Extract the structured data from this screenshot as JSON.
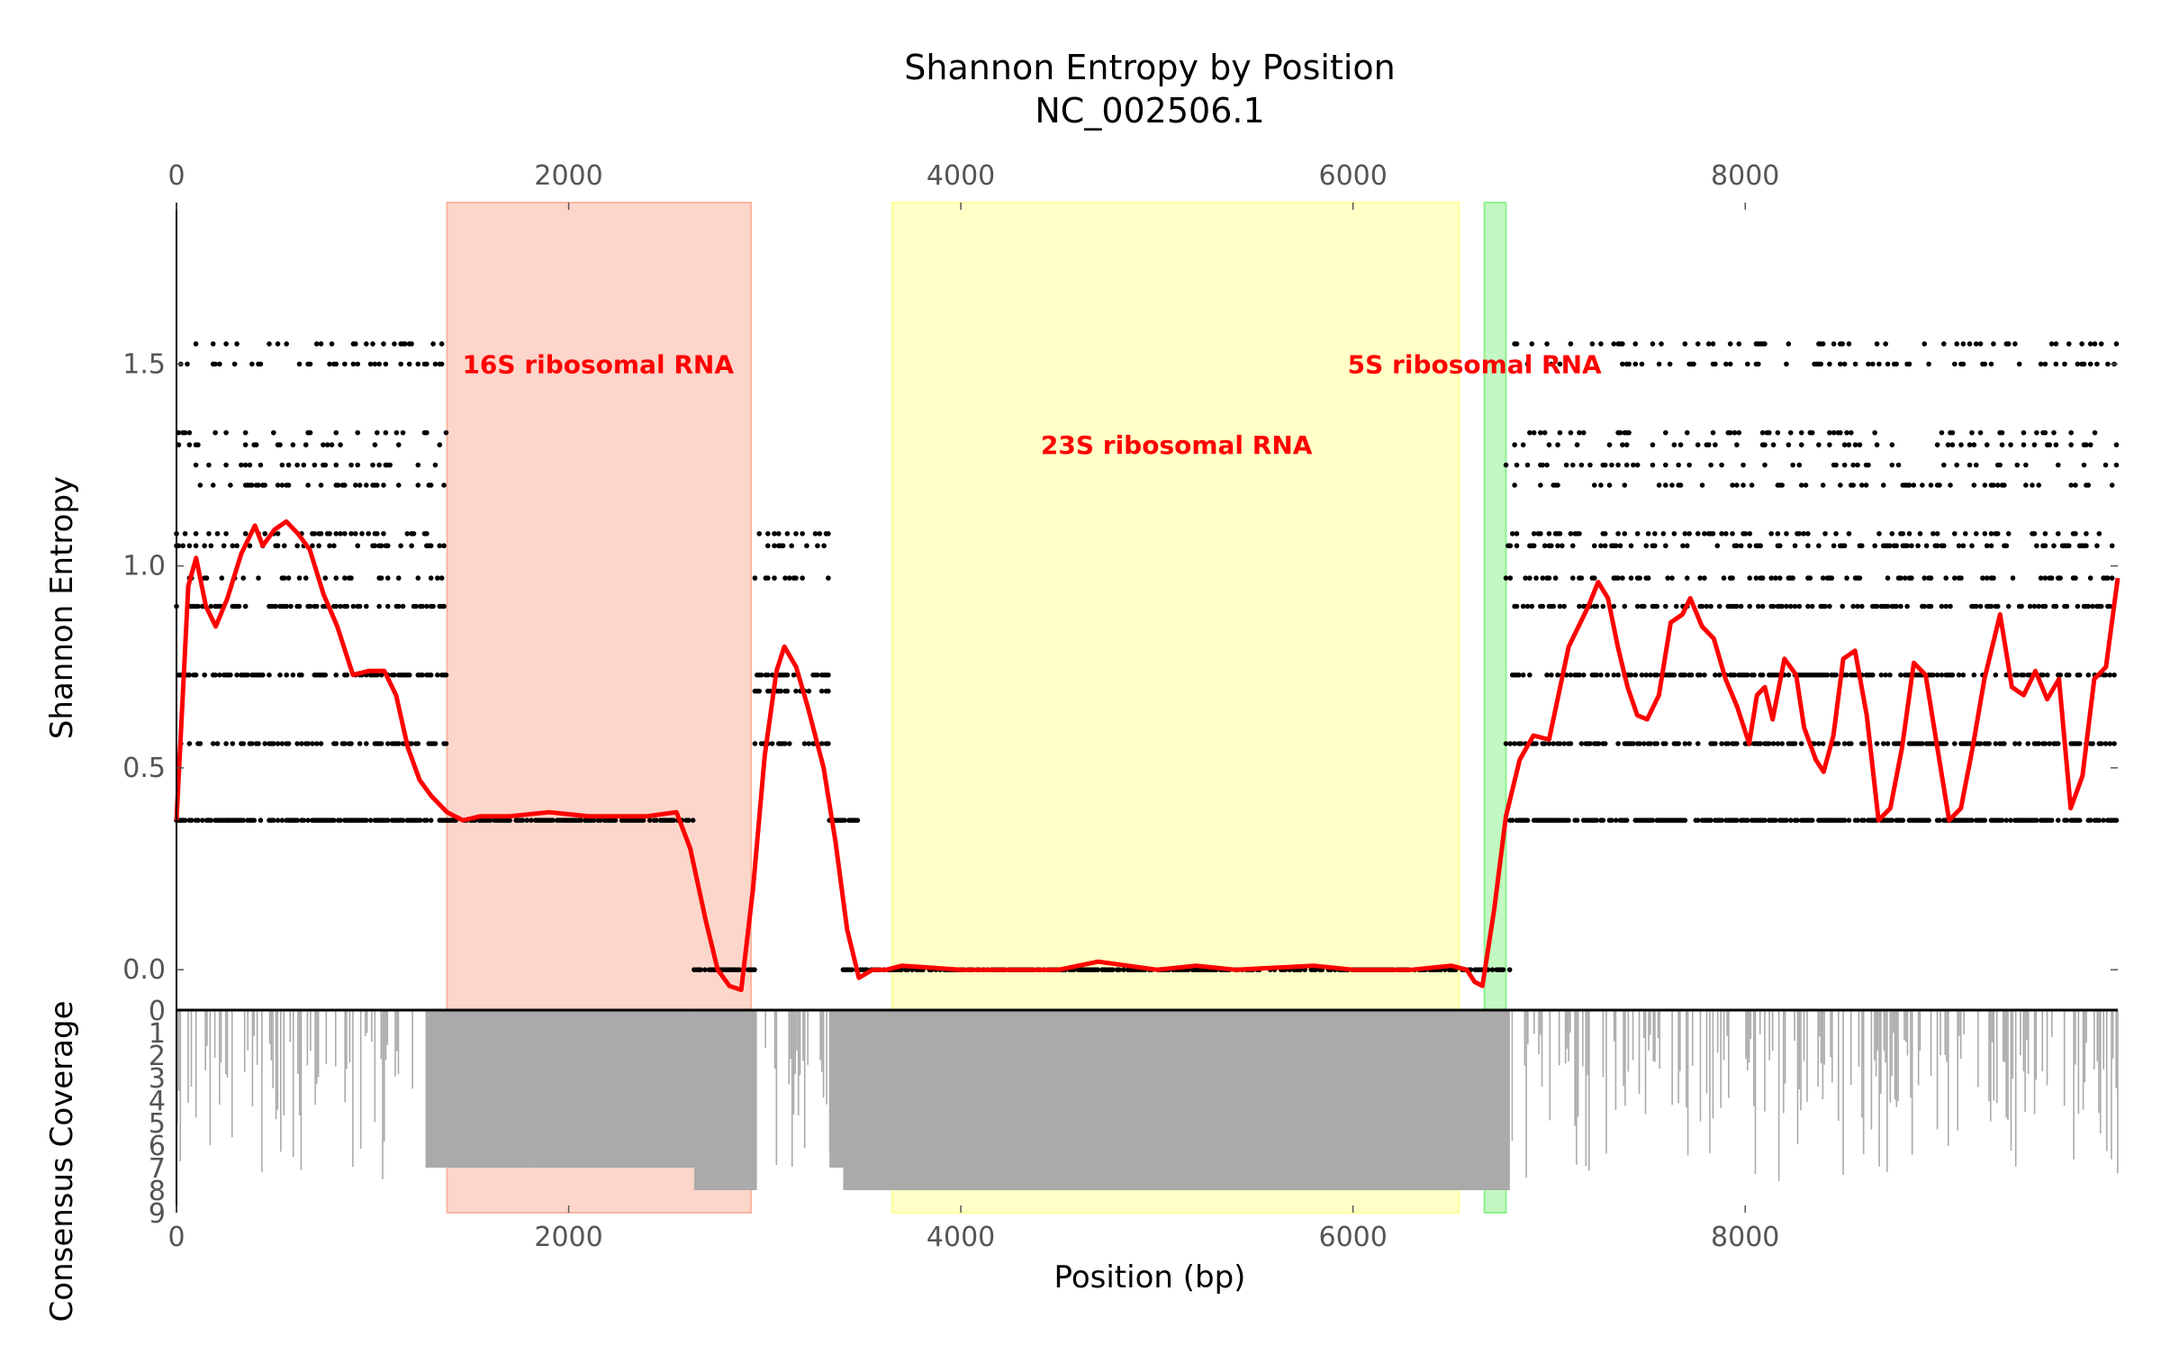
{
  "chart_data": {
    "type": "scatter",
    "title": "Shannon Entropy by Position",
    "subtitle": "NC_002506.1",
    "xlabel": "Position (bp)",
    "ylabel": "Shannon Entropy",
    "ylabel_coverage": "Consensus Coverage",
    "xlim": [
      0,
      9900
    ],
    "ylim": [
      -0.1,
      1.9
    ],
    "coverage_lim": [
      0,
      9
    ],
    "x_ticks": [
      0,
      2000,
      4000,
      6000,
      8000
    ],
    "y_ticks": [
      0.0,
      0.5,
      1.0,
      1.5
    ],
    "coverage_ticks": [
      0,
      1,
      2,
      3,
      4,
      5,
      6,
      7,
      8,
      9
    ],
    "regions": [
      {
        "label": "16S ribosomal RNA",
        "start": 1380,
        "end": 2930,
        "color": "#fbb5a0",
        "label_x": 2150,
        "label_y": 1.5
      },
      {
        "label": "23S ribosomal RNA",
        "start": 3650,
        "end": 6540,
        "color": "#ffff99",
        "label_x": 5100,
        "label_y": 1.3
      },
      {
        "label": "5S ribosomal RNA",
        "start": 6670,
        "end": 6780,
        "color": "#8ff28f",
        "label_x": 6620,
        "label_y": 1.5
      }
    ],
    "entropy_levels": [
      0.0,
      0.37,
      0.56,
      0.73,
      0.9,
      0.97,
      1.05,
      1.08,
      1.2,
      1.25,
      1.3,
      1.33,
      1.5,
      1.55
    ],
    "scatter_segments": [
      {
        "x_start": 0,
        "x_end": 1380,
        "levels": [
          0.37,
          0.56,
          0.73,
          0.9,
          0.97,
          1.05,
          1.08,
          1.2,
          1.25,
          1.3,
          1.33,
          1.5,
          1.55
        ]
      },
      {
        "x_start": 1380,
        "x_end": 2640,
        "levels": [
          0.37
        ]
      },
      {
        "x_start": 2640,
        "x_end": 2950,
        "levels": [
          0.0
        ]
      },
      {
        "x_start": 2950,
        "x_end": 3330,
        "levels": [
          0.56,
          0.69,
          0.73,
          0.97,
          1.05,
          1.08
        ]
      },
      {
        "x_start": 3330,
        "x_end": 3480,
        "levels": [
          0.37
        ]
      },
      {
        "x_start": 3400,
        "x_end": 6800,
        "levels": [
          0.0
        ]
      },
      {
        "x_start": 6780,
        "x_end": 9900,
        "levels": [
          0.37,
          0.56,
          0.73,
          0.9,
          0.97,
          1.05,
          1.08,
          1.2,
          1.25,
          1.3,
          1.33,
          1.5,
          1.55
        ]
      }
    ],
    "series": [
      {
        "x": [
          0,
          60,
          100,
          150,
          200,
          260,
          330,
          400,
          440,
          500,
          560,
          620,
          680,
          750,
          820,
          900,
          980,
          1060,
          1120,
          1180,
          1240,
          1300,
          1380,
          1460,
          1550,
          1700,
          1900,
          2100,
          2400,
          2550,
          2620,
          2700,
          2760,
          2820,
          2880,
          2940,
          3000,
          3060,
          3100,
          3160,
          3220,
          3300,
          3360,
          3420,
          3480,
          3550,
          3620,
          3700,
          4000,
          4500,
          4700,
          5000,
          5200,
          5400,
          5800,
          6000,
          6300,
          6500,
          6580,
          6620,
          6660,
          6720,
          6780,
          6850,
          6920,
          7000,
          7100,
          7200,
          7250,
          7300,
          7350,
          7400,
          7450,
          7500,
          7560,
          7620,
          7680,
          7720,
          7780,
          7840,
          7900,
          7960,
          8020,
          8060,
          8100,
          8140,
          8200,
          8260,
          8300,
          8360,
          8400,
          8450,
          8500,
          8560,
          8620,
          8680,
          8740,
          8800,
          8860,
          8920,
          8980,
          9040,
          9100,
          9160,
          9220,
          9300,
          9360,
          9420,
          9480,
          9540,
          9600,
          9660,
          9720,
          9780,
          9840,
          9900
        ],
        "y": [
          0.37,
          0.95,
          1.02,
          0.9,
          0.85,
          0.92,
          1.03,
          1.1,
          1.05,
          1.09,
          1.11,
          1.08,
          1.04,
          0.93,
          0.85,
          0.73,
          0.74,
          0.74,
          0.68,
          0.55,
          0.47,
          0.43,
          0.39,
          0.37,
          0.38,
          0.38,
          0.39,
          0.38,
          0.38,
          0.39,
          0.3,
          0.12,
          0.0,
          -0.04,
          -0.05,
          0.2,
          0.53,
          0.74,
          0.8,
          0.75,
          0.65,
          0.5,
          0.32,
          0.1,
          -0.02,
          0.0,
          0.0,
          0.01,
          0.0,
          0.0,
          0.02,
          0.0,
          0.01,
          0.0,
          0.01,
          0.0,
          0.0,
          0.01,
          0.0,
          -0.03,
          -0.04,
          0.15,
          0.38,
          0.52,
          0.58,
          0.57,
          0.8,
          0.9,
          0.96,
          0.92,
          0.8,
          0.7,
          0.63,
          0.62,
          0.68,
          0.86,
          0.88,
          0.92,
          0.85,
          0.82,
          0.72,
          0.65,
          0.56,
          0.68,
          0.7,
          0.62,
          0.77,
          0.73,
          0.6,
          0.52,
          0.49,
          0.58,
          0.77,
          0.79,
          0.63,
          0.37,
          0.4,
          0.55,
          0.76,
          0.73,
          0.55,
          0.37,
          0.4,
          0.55,
          0.72,
          0.88,
          0.7,
          0.68,
          0.74,
          0.67,
          0.72,
          0.4,
          0.48,
          0.72,
          0.75,
          0.97
        ]
      }
    ],
    "coverage_profile": [
      {
        "x_start": 0,
        "x_end": 1270,
        "depth": "sparse"
      },
      {
        "x_start": 1270,
        "x_end": 1830,
        "depth": 7
      },
      {
        "x_start": 1830,
        "x_end": 2640,
        "depth": 7
      },
      {
        "x_start": 2640,
        "x_end": 2960,
        "depth": 8
      },
      {
        "x_start": 2960,
        "x_end": 3330,
        "depth": "sparse"
      },
      {
        "x_start": 3330,
        "x_end": 3400,
        "depth": 7
      },
      {
        "x_start": 3400,
        "x_end": 6800,
        "depth": 8
      },
      {
        "x_start": 6800,
        "x_end": 9900,
        "depth": "sparse"
      }
    ],
    "colors": {
      "line": "#ff0000",
      "points": "#000000",
      "coverage": "#aaaaaa"
    },
    "grid": false,
    "legend": "none"
  }
}
